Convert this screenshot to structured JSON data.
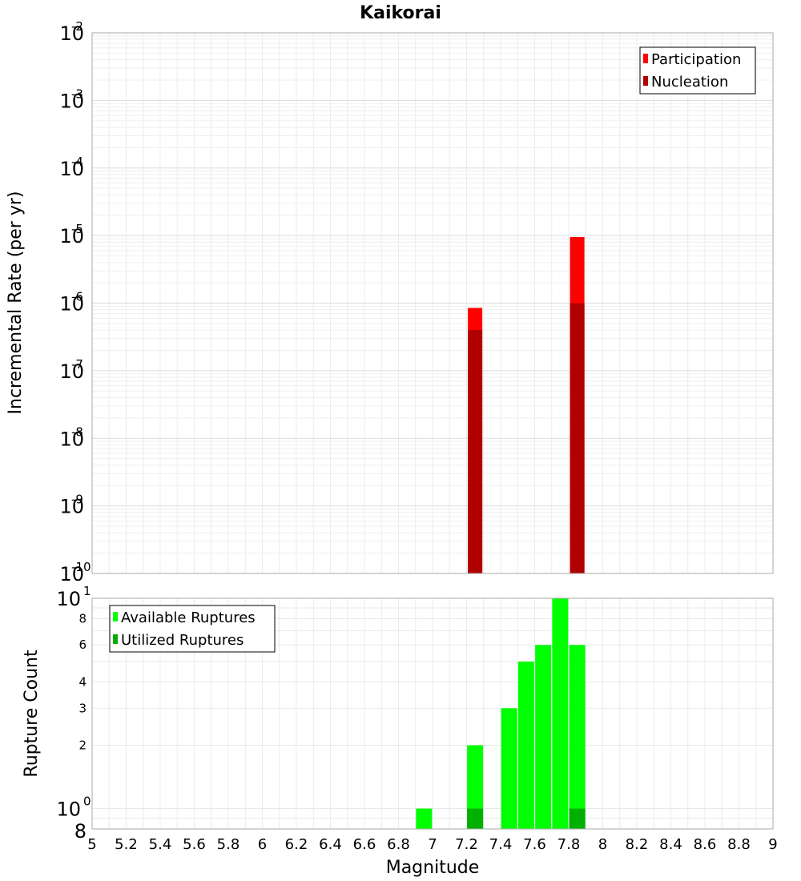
{
  "chart_data": [
    {
      "type": "bar",
      "title": "Kaikorai",
      "ylabel": "Incremental Rate (per yr)",
      "yscale": "log",
      "ylim": [
        1e-10,
        0.01
      ],
      "xlim": [
        5,
        9
      ],
      "grid": true,
      "legend_position": "top-right",
      "y_tick_labels": [
        {
          "base": "10",
          "exp": "-2"
        },
        {
          "base": "10",
          "exp": "-3"
        },
        {
          "base": "10",
          "exp": "-4"
        },
        {
          "base": "10",
          "exp": "-5"
        },
        {
          "base": "10",
          "exp": "-6"
        },
        {
          "base": "10",
          "exp": "-7"
        },
        {
          "base": "10",
          "exp": "-8"
        },
        {
          "base": "10",
          "exp": "-9"
        },
        {
          "base": "10",
          "exp": "-10"
        }
      ],
      "series": [
        {
          "name": "Participation",
          "color": "#ff0000",
          "x": [
            7.25,
            7.85
          ],
          "values": [
            8.5e-07,
            9.5e-06
          ]
        },
        {
          "name": "Nucleation",
          "color": "#b00000",
          "x": [
            7.25,
            7.85
          ],
          "values": [
            4e-07,
            1e-06
          ]
        }
      ]
    },
    {
      "type": "bar",
      "ylabel": "Rupture Count",
      "xlabel": "Magnitude",
      "yscale": "log",
      "ylim": [
        0.8,
        10
      ],
      "xlim": [
        5,
        9
      ],
      "grid": true,
      "legend_position": "top-left",
      "x_tick_labels": [
        "5",
        "5.2",
        "5.4",
        "5.6",
        "5.8",
        "6",
        "6.2",
        "6.4",
        "6.6",
        "6.8",
        "7",
        "7.2",
        "7.4",
        "7.6",
        "7.8",
        "8",
        "8.2",
        "8.4",
        "8.6",
        "8.8",
        "9"
      ],
      "y_minor_labels": [
        "8",
        "6",
        "4",
        "3",
        "2"
      ],
      "y_major_labels": [
        {
          "base": "10",
          "exp": "1"
        },
        {
          "base": "10",
          "exp": "0"
        }
      ],
      "y_bottom_label": "8",
      "series": [
        {
          "name": "Available Ruptures",
          "color": "#00ff00",
          "x": [
            6.95,
            7.25,
            7.45,
            7.55,
            7.65,
            7.75,
            7.85
          ],
          "values": [
            1,
            2,
            3,
            5,
            6,
            10,
            6
          ]
        },
        {
          "name": "Utilized Ruptures",
          "color": "#00b000",
          "x": [
            7.25,
            7.85
          ],
          "values": [
            1,
            1
          ]
        }
      ]
    }
  ]
}
